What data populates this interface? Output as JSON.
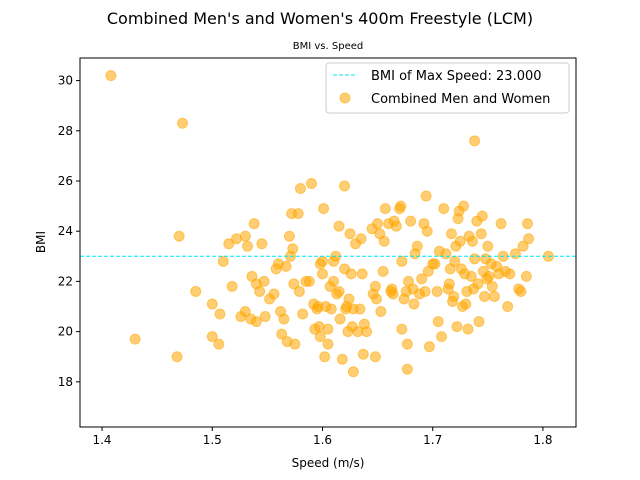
{
  "figure": {
    "suptitle": "Combined Men's and Women's 400m Freestyle (LCM)"
  },
  "chart_data": {
    "type": "scatter",
    "title": "BMI vs. Speed",
    "xlabel": "Speed (m/s)",
    "ylabel": "BMI",
    "xlim": [
      1.38,
      1.83
    ],
    "ylim": [
      16.2,
      30.9
    ],
    "xticks": [
      1.4,
      1.5,
      1.6,
      1.7,
      1.8
    ],
    "yticks": [
      18,
      20,
      22,
      24,
      26,
      28,
      30
    ],
    "grid": false,
    "legend_position": "upper right",
    "hline": {
      "y": 23.0,
      "label": "BMI of Max Speed: 23.000",
      "color": "#00e5ee",
      "style": "dashed"
    },
    "series": [
      {
        "name": "Combined Men and Women",
        "color": "#ffa500",
        "alpha": 0.55,
        "points": [
          [
            1.408,
            30.2
          ],
          [
            1.473,
            28.3
          ],
          [
            1.738,
            27.6
          ],
          [
            1.43,
            19.7
          ],
          [
            1.47,
            23.8
          ],
          [
            1.468,
            19.0
          ],
          [
            1.485,
            21.6
          ],
          [
            1.5,
            21.1
          ],
          [
            1.5,
            19.8
          ],
          [
            1.506,
            19.5
          ],
          [
            1.507,
            20.7
          ],
          [
            1.51,
            22.8
          ],
          [
            1.515,
            23.5
          ],
          [
            1.518,
            21.8
          ],
          [
            1.522,
            23.7
          ],
          [
            1.526,
            20.6
          ],
          [
            1.53,
            23.8
          ],
          [
            1.53,
            20.8
          ],
          [
            1.532,
            23.4
          ],
          [
            1.535,
            20.5
          ],
          [
            1.536,
            22.2
          ],
          [
            1.538,
            24.3
          ],
          [
            1.54,
            21.9
          ],
          [
            1.54,
            20.4
          ],
          [
            1.543,
            21.6
          ],
          [
            1.545,
            23.5
          ],
          [
            1.547,
            22.0
          ],
          [
            1.548,
            20.6
          ],
          [
            1.552,
            21.3
          ],
          [
            1.556,
            21.5
          ],
          [
            1.558,
            22.5
          ],
          [
            1.56,
            22.7
          ],
          [
            1.562,
            20.8
          ],
          [
            1.563,
            19.9
          ],
          [
            1.565,
            20.5
          ],
          [
            1.567,
            22.6
          ],
          [
            1.568,
            19.6
          ],
          [
            1.57,
            23.8
          ],
          [
            1.571,
            23.0
          ],
          [
            1.572,
            24.7
          ],
          [
            1.573,
            23.3
          ],
          [
            1.574,
            21.9
          ],
          [
            1.575,
            19.5
          ],
          [
            1.578,
            24.7
          ],
          [
            1.579,
            21.6
          ],
          [
            1.58,
            25.7
          ],
          [
            1.582,
            20.7
          ],
          [
            1.585,
            22.0
          ],
          [
            1.588,
            22.0
          ],
          [
            1.59,
            25.9
          ],
          [
            1.592,
            21.1
          ],
          [
            1.593,
            20.1
          ],
          [
            1.595,
            20.9
          ],
          [
            1.596,
            21.0
          ],
          [
            1.597,
            20.2
          ],
          [
            1.598,
            22.7
          ],
          [
            1.598,
            19.8
          ],
          [
            1.6,
            22.8
          ],
          [
            1.6,
            22.3
          ],
          [
            1.601,
            24.9
          ],
          [
            1.602,
            19.0
          ],
          [
            1.603,
            21.0
          ],
          [
            1.605,
            20.1
          ],
          [
            1.605,
            19.5
          ],
          [
            1.607,
            21.8
          ],
          [
            1.608,
            20.9
          ],
          [
            1.61,
            22.8
          ],
          [
            1.61,
            22.0
          ],
          [
            1.612,
            23.0
          ],
          [
            1.613,
            21.5
          ],
          [
            1.615,
            24.2
          ],
          [
            1.615,
            21.6
          ],
          [
            1.616,
            20.5
          ],
          [
            1.618,
            18.9
          ],
          [
            1.62,
            25.8
          ],
          [
            1.62,
            22.5
          ],
          [
            1.621,
            20.9
          ],
          [
            1.622,
            21.0
          ],
          [
            1.623,
            20.0
          ],
          [
            1.624,
            21.3
          ],
          [
            1.625,
            23.9
          ],
          [
            1.626,
            22.3
          ],
          [
            1.627,
            20.2
          ],
          [
            1.628,
            18.4
          ],
          [
            1.628,
            20.9
          ],
          [
            1.63,
            23.5
          ],
          [
            1.632,
            20.0
          ],
          [
            1.634,
            20.9
          ],
          [
            1.635,
            23.7
          ],
          [
            1.636,
            22.3
          ],
          [
            1.637,
            19.1
          ],
          [
            1.638,
            20.3
          ],
          [
            1.64,
            20.0
          ],
          [
            1.645,
            24.1
          ],
          [
            1.646,
            21.5
          ],
          [
            1.648,
            21.8
          ],
          [
            1.648,
            19.0
          ],
          [
            1.649,
            21.3
          ],
          [
            1.65,
            24.3
          ],
          [
            1.652,
            23.9
          ],
          [
            1.653,
            20.8
          ],
          [
            1.655,
            22.4
          ],
          [
            1.656,
            23.6
          ],
          [
            1.657,
            24.9
          ],
          [
            1.66,
            24.3
          ],
          [
            1.662,
            21.6
          ],
          [
            1.663,
            21.7
          ],
          [
            1.664,
            21.5
          ],
          [
            1.665,
            24.4
          ],
          [
            1.667,
            24.2
          ],
          [
            1.67,
            24.9
          ],
          [
            1.671,
            25.0
          ],
          [
            1.672,
            22.8
          ],
          [
            1.672,
            20.1
          ],
          [
            1.674,
            21.3
          ],
          [
            1.676,
            21.6
          ],
          [
            1.677,
            19.5
          ],
          [
            1.677,
            18.5
          ],
          [
            1.678,
            22.0
          ],
          [
            1.68,
            24.4
          ],
          [
            1.682,
            21.7
          ],
          [
            1.683,
            21.1
          ],
          [
            1.684,
            23.1
          ],
          [
            1.686,
            23.4
          ],
          [
            1.688,
            21.5
          ],
          [
            1.69,
            22.1
          ],
          [
            1.692,
            24.3
          ],
          [
            1.693,
            21.6
          ],
          [
            1.694,
            25.4
          ],
          [
            1.695,
            24.0
          ],
          [
            1.696,
            22.4
          ],
          [
            1.697,
            19.4
          ],
          [
            1.7,
            22.7
          ],
          [
            1.702,
            22.7
          ],
          [
            1.704,
            21.6
          ],
          [
            1.705,
            20.4
          ],
          [
            1.706,
            23.2
          ],
          [
            1.708,
            19.8
          ],
          [
            1.71,
            24.9
          ],
          [
            1.712,
            23.1
          ],
          [
            1.714,
            21.7
          ],
          [
            1.715,
            21.9
          ],
          [
            1.716,
            22.5
          ],
          [
            1.717,
            23.9
          ],
          [
            1.718,
            21.2
          ],
          [
            1.719,
            21.4
          ],
          [
            1.72,
            22.8
          ],
          [
            1.721,
            23.4
          ],
          [
            1.722,
            20.2
          ],
          [
            1.723,
            24.5
          ],
          [
            1.724,
            24.8
          ],
          [
            1.725,
            23.6
          ],
          [
            1.726,
            22.5
          ],
          [
            1.727,
            21.0
          ],
          [
            1.728,
            25.0
          ],
          [
            1.729,
            22.3
          ],
          [
            1.73,
            21.1
          ],
          [
            1.731,
            21.6
          ],
          [
            1.732,
            20.1
          ],
          [
            1.733,
            23.8
          ],
          [
            1.735,
            22.2
          ],
          [
            1.736,
            23.6
          ],
          [
            1.737,
            21.7
          ],
          [
            1.738,
            22.9
          ],
          [
            1.74,
            24.4
          ],
          [
            1.741,
            21.9
          ],
          [
            1.742,
            20.4
          ],
          [
            1.744,
            23.9
          ],
          [
            1.745,
            24.6
          ],
          [
            1.746,
            22.4
          ],
          [
            1.747,
            21.4
          ],
          [
            1.748,
            22.9
          ],
          [
            1.749,
            22.1
          ],
          [
            1.75,
            23.4
          ],
          [
            1.751,
            22.2
          ],
          [
            1.753,
            22.7
          ],
          [
            1.754,
            21.8
          ],
          [
            1.756,
            21.4
          ],
          [
            1.758,
            22.6
          ],
          [
            1.76,
            22.3
          ],
          [
            1.762,
            24.3
          ],
          [
            1.764,
            23.0
          ],
          [
            1.766,
            22.4
          ],
          [
            1.768,
            21.0
          ],
          [
            1.77,
            22.3
          ],
          [
            1.775,
            23.1
          ],
          [
            1.778,
            21.7
          ],
          [
            1.78,
            21.6
          ],
          [
            1.782,
            23.4
          ],
          [
            1.785,
            22.2
          ],
          [
            1.786,
            24.3
          ],
          [
            1.787,
            23.7
          ],
          [
            1.805,
            23.0
          ]
        ]
      }
    ]
  }
}
